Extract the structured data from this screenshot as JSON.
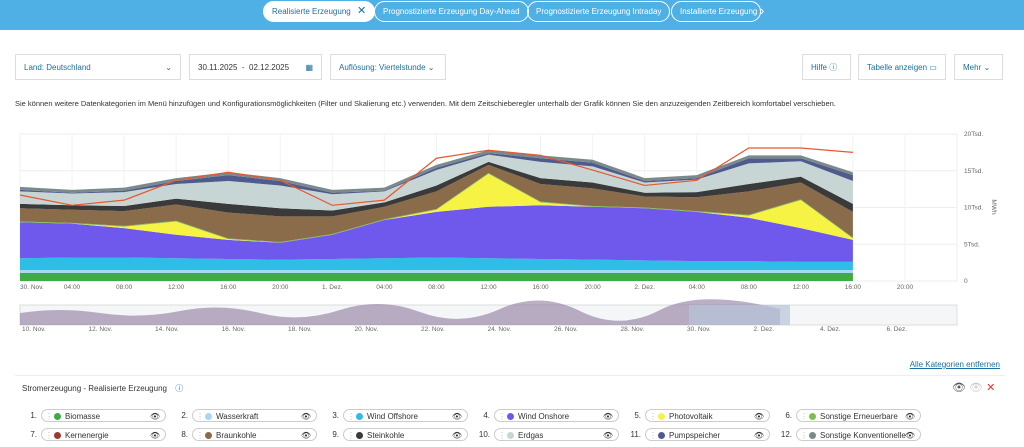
{
  "tabs": [
    "Realisierte Erzeugung",
    "Prognostizierte Erzeugung Day-Ahead",
    "Prognostizierte Erzeugung Intraday",
    "Installierte Erzeugung"
  ],
  "filters": {
    "country": "Land: Deutschland",
    "date_from": "30.11.2025",
    "date_sep": "-",
    "date_to": "02.12.2025",
    "resolution": "Auflösung: Viertelstunde",
    "help": "Hilfe",
    "table": "Tabelle anzeigen",
    "more": "Mehr"
  },
  "info": "Sie können weitere Datenkategorien im Menü hinzufügen und Konfigurationsmöglichkeiten (Filter und Skalierung etc.) verwenden. Mit dem Zeitschieberegler unterhalb der Grafik können Sie den anzuzeigenden Zeitbereich komfortabel verschieben.",
  "chart_data": {
    "type": "area",
    "stacked": true,
    "y_label": "MWh",
    "x": [
      0,
      4,
      8,
      12,
      16,
      20,
      24,
      28,
      32,
      36,
      40,
      44,
      48,
      52,
      56,
      60,
      64
    ],
    "xlim": [
      0,
      72
    ],
    "xticks": [
      {
        "value": 0,
        "label": "30. Nov."
      },
      {
        "value": 4,
        "label": "04:00"
      },
      {
        "value": 8,
        "label": "08:00"
      },
      {
        "value": 12,
        "label": "12:00"
      },
      {
        "value": 16,
        "label": "16:00"
      },
      {
        "value": 20,
        "label": "20:00"
      },
      {
        "value": 24,
        "label": "1. Dez."
      },
      {
        "value": 28,
        "label": "04:00"
      },
      {
        "value": 32,
        "label": "08:00"
      },
      {
        "value": 36,
        "label": "12:00"
      },
      {
        "value": 40,
        "label": "16:00"
      },
      {
        "value": 44,
        "label": "20:00"
      },
      {
        "value": 48,
        "label": "2. Dez."
      },
      {
        "value": 52,
        "label": "04:00"
      },
      {
        "value": 56,
        "label": "08:00"
      },
      {
        "value": 60,
        "label": "12:00"
      },
      {
        "value": 64,
        "label": "16:00"
      },
      {
        "value": 68,
        "label": "20:00"
      }
    ],
    "ylim": [
      0,
      20000
    ],
    "yticks": [
      0,
      {
        "value": 5000,
        "label": "5Tsd."
      },
      {
        "value": 10000,
        "label": "10Tsd."
      },
      {
        "value": 15000,
        "label": "15Tsd."
      },
      {
        "value": 20000,
        "label": "20Tsd."
      }
    ],
    "grid": true,
    "series": [
      {
        "name": "Biomasse",
        "color": "#3eab45",
        "values": [
          1100,
          1100,
          1100,
          1100,
          1100,
          1100,
          1100,
          1100,
          1100,
          1100,
          1100,
          1100,
          1100,
          1100,
          1100,
          1100,
          1100
        ]
      },
      {
        "name": "Wasserkraft",
        "color": "#a3d9f5",
        "values": [
          400,
          400,
          400,
          400,
          400,
          400,
          400,
          400,
          400,
          400,
          400,
          400,
          400,
          400,
          400,
          400,
          400
        ]
      },
      {
        "name": "Wind Offshore",
        "color": "#2ebde6",
        "values": [
          1600,
          1700,
          1700,
          1600,
          1500,
          1400,
          1500,
          1600,
          1700,
          1600,
          1500,
          1400,
          1300,
          1200,
          1200,
          1100,
          1100
        ]
      },
      {
        "name": "Wind Onshore",
        "color": "#6e59ec",
        "values": [
          4900,
          4600,
          4000,
          3200,
          2600,
          2300,
          3300,
          5200,
          6200,
          7000,
          7300,
          7200,
          7100,
          6700,
          5900,
          4600,
          3000
        ]
      },
      {
        "name": "Photovoltaik",
        "color": "#f6f344",
        "values": [
          0,
          0,
          200,
          1800,
          100,
          0,
          0,
          0,
          300,
          4500,
          400,
          0,
          0,
          0,
          300,
          3800,
          200
        ]
      },
      {
        "name": "Sonstige Erneuerbare",
        "color": "#7dbf4d",
        "values": [
          100,
          100,
          100,
          100,
          100,
          100,
          100,
          100,
          100,
          100,
          100,
          100,
          100,
          100,
          100,
          100,
          100
        ]
      },
      {
        "name": "Kernenergie",
        "color": "#9b3b2e",
        "values": [
          0,
          0,
          0,
          0,
          0,
          0,
          0,
          0,
          0,
          0,
          0,
          0,
          0,
          0,
          0,
          0,
          0
        ]
      },
      {
        "name": "Braunkohle",
        "color": "#8a6b4a",
        "values": [
          1800,
          1800,
          2000,
          2200,
          3500,
          3500,
          2400,
          1700,
          2400,
          1100,
          2400,
          2400,
          1500,
          1900,
          3200,
          2300,
          3500
        ]
      },
      {
        "name": "Steinkohle",
        "color": "#3a3a3a",
        "values": [
          600,
          600,
          700,
          800,
          1200,
          1100,
          800,
          600,
          800,
          400,
          800,
          800,
          500,
          700,
          1000,
          800,
          1100
        ]
      },
      {
        "name": "Erdgas",
        "color": "#c7d5d5",
        "values": [
          1700,
          1600,
          1900,
          2000,
          3100,
          3100,
          2200,
          1500,
          2100,
          1000,
          2200,
          2200,
          1400,
          1700,
          2800,
          2100,
          3100
        ]
      },
      {
        "name": "Pumpspeicher",
        "color": "#4f5b8c",
        "values": [
          200,
          100,
          200,
          400,
          800,
          600,
          200,
          100,
          300,
          200,
          500,
          500,
          200,
          200,
          700,
          400,
          800
        ]
      },
      {
        "name": "Sonstige Konventionelle",
        "color": "#7a8a8a",
        "values": [
          400,
          400,
          400,
          400,
          400,
          400,
          400,
          400,
          400,
          400,
          400,
          400,
          400,
          400,
          400,
          400,
          400
        ]
      }
    ],
    "line_color": "#e8572e",
    "line_values": [
      11700,
      10300,
      11000,
      13700,
      14800,
      13700,
      10300,
      11000,
      16700,
      17800,
      17100,
      15100,
      13000,
      13700,
      18100,
      18100,
      17500
    ]
  },
  "navigator_labels": [
    "10. Nov.",
    "12. Nov.",
    "14. Nov.",
    "16. Nov.",
    "18. Nov.",
    "20. Nov.",
    "22. Nov.",
    "24. Nov.",
    "26. Nov.",
    "28. Nov.",
    "30. Nov.",
    "2. Dez.",
    "4. Dez.",
    "6. Dez."
  ],
  "remove_all": "Alle Kategorien entfernen",
  "legend_title": "Stromerzeugung - Realisierte Erzeugung",
  "legend_numbers": [
    "1.",
    "2.",
    "3.",
    "4.",
    "5.",
    "6.",
    "7.",
    "8.",
    "9.",
    "10.",
    "11.",
    "12."
  ]
}
